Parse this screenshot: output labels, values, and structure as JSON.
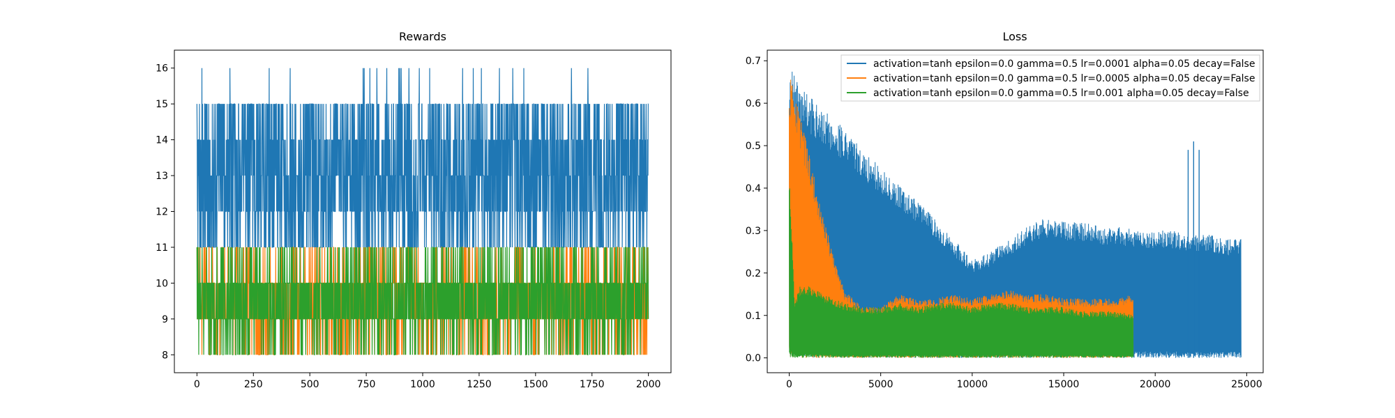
{
  "chart_data": [
    {
      "type": "line",
      "title": "Rewards",
      "xlabel": "",
      "ylabel": "",
      "xlim": [
        -100,
        2100
      ],
      "ylim": [
        7.5,
        16.5
      ],
      "xticks": [
        0,
        250,
        500,
        750,
        1000,
        1250,
        1500,
        1750,
        2000
      ],
      "yticks": [
        8,
        9,
        10,
        11,
        12,
        13,
        14,
        15,
        16
      ],
      "grid": false,
      "series": [
        {
          "color": "#1f77b4",
          "x_range": [
            0,
            2000
          ],
          "values_min": 11,
          "values_max": 16,
          "typical_min": 11,
          "typical_max": 15,
          "values": [
            13,
            11,
            15,
            12,
            14,
            11,
            13,
            15,
            12,
            11,
            14,
            12,
            13,
            11,
            15,
            12,
            13,
            14,
            11,
            12,
            13,
            15,
            11,
            12,
            14,
            13,
            11,
            12,
            15,
            13,
            12,
            11,
            14,
            12,
            13,
            11,
            15,
            12,
            13,
            14
          ]
        },
        {
          "color": "#ff7f0e",
          "x_range": [
            0,
            2000
          ],
          "values_min": 8,
          "values_max": 11,
          "values": [
            9,
            10,
            8,
            9,
            10,
            11,
            9,
            8,
            10,
            9,
            11,
            9,
            10,
            8,
            9,
            10,
            9,
            11,
            8,
            10,
            9,
            10,
            8,
            9,
            11,
            10,
            9,
            8,
            10,
            9,
            10,
            11,
            9,
            8,
            10,
            9,
            10,
            8,
            9,
            10
          ]
        },
        {
          "color": "#2ca02c",
          "x_range": [
            0,
            2000
          ],
          "values_min": 8,
          "values_max": 11,
          "values": [
            9,
            10,
            9,
            8,
            10,
            9,
            11,
            10,
            8,
            9,
            10,
            9,
            10,
            8,
            9,
            11,
            10,
            9,
            8,
            10,
            9,
            10,
            9,
            8,
            10,
            11,
            9,
            10,
            8,
            9,
            10,
            9,
            10,
            8,
            11,
            9,
            10,
            9,
            8,
            10
          ]
        }
      ]
    },
    {
      "type": "line",
      "title": "Loss",
      "xlabel": "",
      "ylabel": "",
      "xlim": [
        -1200,
        25900
      ],
      "ylim": [
        -0.035,
        0.725
      ],
      "xticks": [
        0,
        5000,
        10000,
        15000,
        20000,
        25000
      ],
      "yticks": [
        0.0,
        0.1,
        0.2,
        0.3,
        0.4,
        0.5,
        0.6,
        0.7
      ],
      "yticklabels": [
        "0.0",
        "0.1",
        "0.2",
        "0.3",
        "0.4",
        "0.5",
        "0.6",
        "0.7"
      ],
      "grid": false,
      "legend_position": "top-right",
      "series": [
        {
          "name": "activation=tanh epsilon=0.0 gamma=0.5 lr=0.0001 alpha=0.05 decay=False",
          "color": "#1f77b4",
          "x_range": [
            0,
            24700
          ],
          "envelope": {
            "x": [
              0,
              100,
              250,
              500,
              1000,
              2000,
              3000,
              4000,
              5000,
              6000,
              7000,
              8000,
              9000,
              10000,
              11000,
              12000,
              13000,
              14000,
              15000,
              16000,
              17000,
              18000,
              19000,
              20000,
              21000,
              22000,
              23000,
              24000,
              24700
            ],
            "upper": [
              0.66,
              0.69,
              0.67,
              0.65,
              0.62,
              0.58,
              0.54,
              0.49,
              0.45,
              0.41,
              0.37,
              0.33,
              0.28,
              0.23,
              0.25,
              0.28,
              0.31,
              0.33,
              0.32,
              0.32,
              0.31,
              0.31,
              0.3,
              0.3,
              0.3,
              0.29,
              0.29,
              0.28,
              0.28
            ],
            "lower": [
              0.0,
              0.0,
              0.0,
              0.0,
              0.0,
              0.0,
              0.0,
              0.0,
              0.0,
              0.0,
              0.0,
              0.0,
              0.0,
              0.0,
              0.0,
              0.0,
              0.0,
              0.0,
              0.0,
              0.0,
              0.0,
              0.0,
              0.0,
              0.0,
              0.0,
              0.0,
              0.0,
              0.0,
              0.0
            ]
          },
          "spikes": [
            {
              "x": 21800,
              "y": 0.49
            },
            {
              "x": 22100,
              "y": 0.51
            },
            {
              "x": 22400,
              "y": 0.49
            }
          ]
        },
        {
          "name": "activation=tanh epsilon=0.0 gamma=0.5 lr=0.0005 alpha=0.05 decay=False",
          "color": "#ff7f0e",
          "x_range": [
            0,
            18800
          ],
          "envelope": {
            "x": [
              0,
              200,
              500,
              1000,
              1500,
              2000,
              2500,
              3000,
              4000,
              5000,
              6000,
              7000,
              8000,
              9000,
              10000,
              11000,
              12000,
              13000,
              14000,
              15000,
              16000,
              17000,
              18000,
              18800
            ],
            "upper": [
              0.66,
              0.65,
              0.59,
              0.5,
              0.4,
              0.31,
              0.23,
              0.16,
              0.12,
              0.12,
              0.15,
              0.14,
              0.14,
              0.15,
              0.14,
              0.15,
              0.16,
              0.15,
              0.15,
              0.14,
              0.14,
              0.14,
              0.14,
              0.15
            ],
            "lower": [
              0.0,
              0.0,
              0.0,
              0.0,
              0.0,
              0.0,
              0.0,
              0.0,
              0.0,
              0.0,
              0.0,
              0.0,
              0.0,
              0.0,
              0.0,
              0.0,
              0.0,
              0.0,
              0.0,
              0.0,
              0.0,
              0.0,
              0.0,
              0.0
            ]
          }
        },
        {
          "name": "activation=tanh epsilon=0.0 gamma=0.5 lr=0.001 alpha=0.05 decay=False",
          "color": "#2ca02c",
          "x_range": [
            0,
            18800
          ],
          "envelope": {
            "x": [
              0,
              100,
              300,
              600,
              1000,
              2000,
              3000,
              4000,
              5000,
              6000,
              7000,
              8000,
              9000,
              10000,
              11000,
              12000,
              13000,
              14000,
              15000,
              16000,
              17000,
              18000,
              18800
            ],
            "upper": [
              0.44,
              0.34,
              0.13,
              0.17,
              0.17,
              0.15,
              0.13,
              0.12,
              0.12,
              0.13,
              0.12,
              0.13,
              0.13,
              0.12,
              0.13,
              0.13,
              0.12,
              0.12,
              0.12,
              0.11,
              0.11,
              0.11,
              0.1
            ],
            "lower": [
              0.0,
              0.0,
              0.0,
              0.0,
              0.0,
              0.0,
              0.0,
              0.0,
              0.0,
              0.0,
              0.0,
              0.0,
              0.0,
              0.0,
              0.0,
              0.0,
              0.0,
              0.0,
              0.0,
              0.0,
              0.0,
              0.0,
              0.0
            ]
          }
        }
      ]
    }
  ]
}
